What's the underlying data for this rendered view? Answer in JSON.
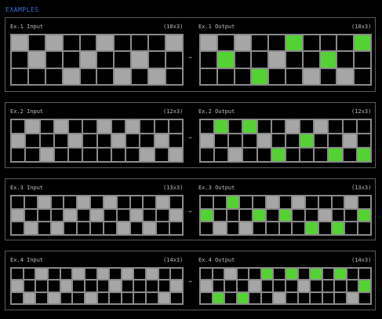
{
  "title": "EXAMPLES",
  "colors": {
    "0": "#000000",
    "5": "#a6a6a6",
    "3": "#55d233"
  },
  "examples": [
    {
      "in_label": "Ex.1 Input",
      "in_dims": "(10x3)",
      "out_label": "Ex.1 Output",
      "out_dims": "(10x3)",
      "arrow": "→",
      "input": [
        [
          5,
          0,
          5,
          0,
          0,
          5,
          0,
          0,
          0,
          5
        ],
        [
          0,
          5,
          0,
          0,
          5,
          0,
          0,
          5,
          0,
          0
        ],
        [
          0,
          0,
          0,
          5,
          0,
          0,
          5,
          0,
          5,
          0
        ]
      ],
      "output": [
        [
          5,
          0,
          5,
          0,
          0,
          3,
          0,
          0,
          0,
          3
        ],
        [
          0,
          3,
          0,
          0,
          5,
          0,
          0,
          3,
          0,
          0
        ],
        [
          0,
          0,
          0,
          3,
          0,
          0,
          5,
          0,
          5,
          0
        ]
      ]
    },
    {
      "in_label": "Ex.2 Input",
      "in_dims": "(12x3)",
      "out_label": "Ex.2 Output",
      "out_dims": "(12x3)",
      "arrow": "→",
      "input": [
        [
          0,
          5,
          0,
          5,
          0,
          0,
          5,
          0,
          5,
          0,
          0,
          0
        ],
        [
          5,
          0,
          0,
          0,
          5,
          0,
          0,
          5,
          0,
          0,
          5,
          0
        ],
        [
          0,
          0,
          5,
          0,
          0,
          0,
          0,
          0,
          0,
          5,
          0,
          5
        ]
      ],
      "output": [
        [
          0,
          3,
          0,
          3,
          0,
          0,
          5,
          0,
          5,
          0,
          0,
          0
        ],
        [
          5,
          0,
          0,
          0,
          5,
          0,
          0,
          3,
          0,
          0,
          5,
          0
        ],
        [
          0,
          0,
          5,
          0,
          0,
          3,
          0,
          0,
          0,
          3,
          0,
          3
        ]
      ]
    },
    {
      "in_label": "Ex.3 Input",
      "in_dims": "(13x3)",
      "out_label": "Ex.3 Output",
      "out_dims": "(13x3)",
      "arrow": "→",
      "input": [
        [
          0,
          0,
          5,
          0,
          0,
          5,
          0,
          5,
          0,
          0,
          0,
          5,
          0
        ],
        [
          5,
          0,
          0,
          0,
          5,
          0,
          5,
          0,
          0,
          5,
          0,
          0,
          5
        ],
        [
          0,
          5,
          0,
          5,
          0,
          0,
          0,
          0,
          5,
          0,
          5,
          0,
          0
        ]
      ],
      "output": [
        [
          0,
          0,
          3,
          0,
          0,
          5,
          0,
          5,
          0,
          0,
          0,
          5,
          0
        ],
        [
          3,
          0,
          0,
          0,
          3,
          0,
          3,
          0,
          0,
          5,
          0,
          0,
          3
        ],
        [
          0,
          5,
          0,
          5,
          0,
          0,
          0,
          0,
          3,
          0,
          3,
          0,
          0
        ]
      ]
    },
    {
      "in_label": "Ex.4 Input",
      "in_dims": "(14x3)",
      "out_label": "Ex.4 Output",
      "out_dims": "(14x3)",
      "arrow": "→",
      "input": [
        [
          0,
          0,
          5,
          0,
          0,
          5,
          0,
          5,
          0,
          5,
          0,
          5,
          0,
          0
        ],
        [
          5,
          0,
          0,
          0,
          5,
          0,
          0,
          0,
          5,
          0,
          0,
          0,
          0,
          5
        ],
        [
          0,
          5,
          0,
          5,
          0,
          0,
          5,
          0,
          0,
          0,
          0,
          0,
          5,
          0
        ]
      ],
      "output": [
        [
          0,
          0,
          5,
          0,
          0,
          3,
          0,
          3,
          0,
          3,
          0,
          3,
          0,
          0
        ],
        [
          5,
          0,
          0,
          0,
          5,
          0,
          0,
          0,
          5,
          0,
          0,
          0,
          0,
          3
        ],
        [
          0,
          3,
          0,
          3,
          0,
          0,
          5,
          0,
          0,
          0,
          0,
          0,
          5,
          0
        ]
      ]
    }
  ]
}
